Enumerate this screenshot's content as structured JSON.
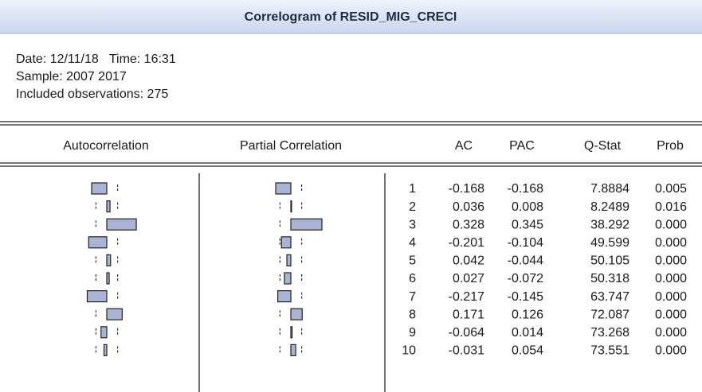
{
  "header": {
    "title": "Correlogram of RESID_MIG_CRECI"
  },
  "info": [
    "Date: 12/11/18   Time: 16:31",
    "Sample: 2007 2017",
    "Included observations: 275"
  ],
  "table": {
    "columns": [
      "Autocorrelation",
      "Partial Correlation",
      "AC",
      "PAC",
      "Q-Stat",
      "Prob"
    ],
    "rows": [
      {
        "lag": 1,
        "ac": "-0.168",
        "pac": "-0.168",
        "q": "7.8884",
        "prob": "0.005"
      },
      {
        "lag": 2,
        "ac": "0.036",
        "pac": "0.008",
        "q": "8.2489",
        "prob": "0.016"
      },
      {
        "lag": 3,
        "ac": "0.328",
        "pac": "0.345",
        "q": "38.292",
        "prob": "0.000"
      },
      {
        "lag": 4,
        "ac": "-0.201",
        "pac": "-0.104",
        "q": "49.599",
        "prob": "0.000"
      },
      {
        "lag": 5,
        "ac": "0.042",
        "pac": "-0.044",
        "q": "50.105",
        "prob": "0.000"
      },
      {
        "lag": 6,
        "ac": "0.027",
        "pac": "-0.072",
        "q": "50.318",
        "prob": "0.000"
      },
      {
        "lag": 7,
        "ac": "-0.217",
        "pac": "-0.145",
        "q": "63.747",
        "prob": "0.000"
      },
      {
        "lag": 8,
        "ac": "0.171",
        "pac": "0.126",
        "q": "72.087",
        "prob": "0.000"
      },
      {
        "lag": 9,
        "ac": "-0.064",
        "pac": "0.014",
        "q": "73.268",
        "prob": "0.000"
      },
      {
        "lag": 10,
        "ac": "-0.031",
        "pac": "0.054",
        "q": "73.551",
        "prob": "0.000"
      }
    ]
  }
}
